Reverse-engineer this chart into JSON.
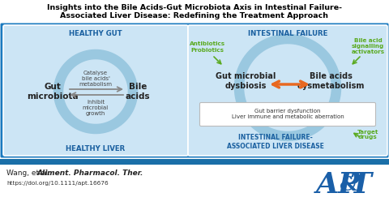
{
  "title_line1": "Insights into the Bile Acids-Gut Microbiota Axis in Intestinal Failure-",
  "title_line2": "Associated Liver Disease: Redefining the Treatment Approach",
  "bg_color": "#1a7abf",
  "panel_bg": "#cce5f5",
  "left_label_top": "HEALTHY GUT",
  "left_label_bot": "HEALTHY LIVER",
  "right_label_top": "INTESTINAL FAILURE",
  "right_label_bot": "INTESTINAL FAILURE-\nASSOCIATED LIVER DISEASE",
  "gut_micro": "Gut\nmicrobiota",
  "bile_acids": "Bile\nacids",
  "catalyse": "Catalyse\nbile acids'\nmetabolism",
  "inhibit": "Inhibit\nmicrobial\ngrowth",
  "gut_dysbiosis": "Gut microbial\ndysbiosis",
  "bile_dysmetab": "Bile acids\ndysmetabolism",
  "gut_barrier": "Gut barrier dysfunction\nLiver immune and metabolic aberration",
  "antibiotics": "Antibiotics\nProbiotics",
  "bile_signal": "Bile acid\nsignalling\nactivators",
  "target_drugs": "Target\ndrugs",
  "footer_plain": "Wang, et al. ",
  "footer_italic": "Aliment. Pharmacol. Ther.",
  "footer_doi": "https://doi.org/10.1111/apt.16676",
  "circle_color": "#9ac8e0",
  "arrow_gray": "#888888",
  "arrow_orange": "#e86820",
  "green_color": "#5aaa20",
  "label_blue": "#1a60a0",
  "blue_bar": "#1a6fa8",
  "apt_blue": "#1a5fa8"
}
